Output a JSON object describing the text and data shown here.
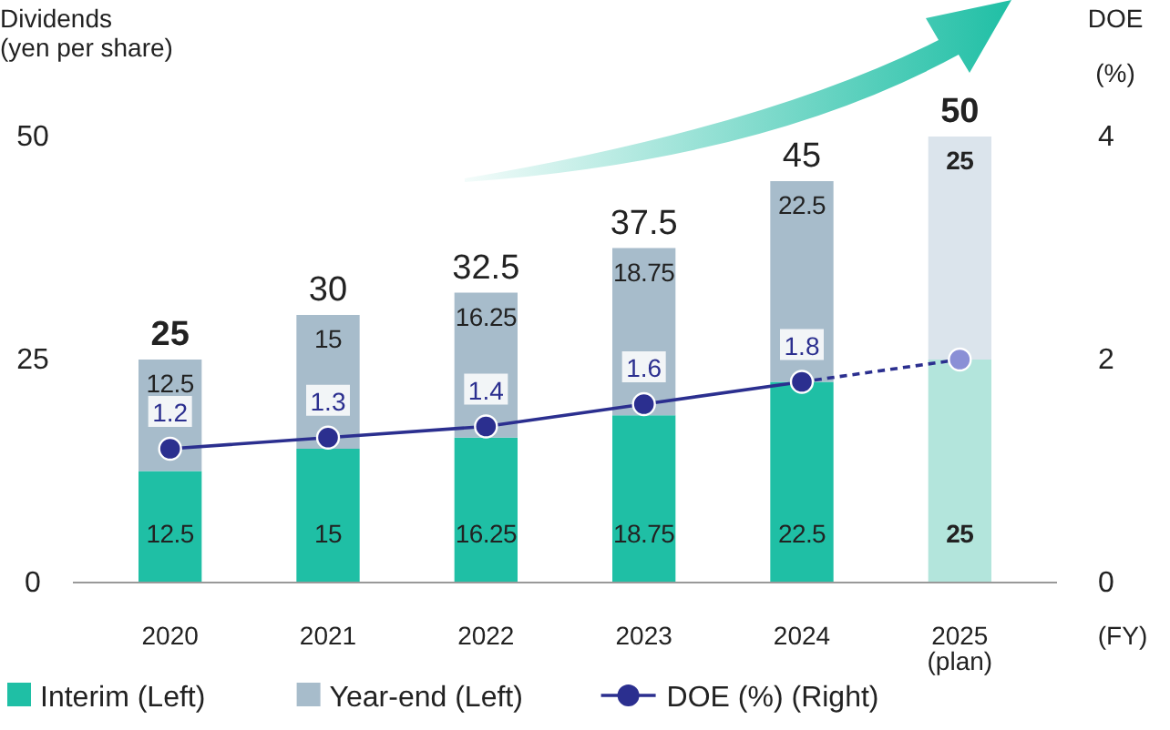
{
  "chart_data": {
    "type": "bar",
    "stacked": true,
    "categories": [
      "2020",
      "2021",
      "2022",
      "2023",
      "2024",
      "2025\n(plan)"
    ],
    "xlabel": "(FY)",
    "ylabel": "Dividends\n(yen per share)",
    "y2label": "DOE\n(%)",
    "ylim": [
      0,
      50
    ],
    "yticks": [
      0,
      25,
      50
    ],
    "y2lim": [
      0,
      4
    ],
    "y2ticks": [
      0,
      2,
      4
    ],
    "series": [
      {
        "name": "Interim (Left)",
        "color": "#1fbfa5",
        "colors": [
          "#1fbfa5",
          "#1fbfa5",
          "#1fbfa5",
          "#1fbfa5",
          "#1fbfa5",
          "#b3e5dc"
        ],
        "values": [
          12.5,
          15,
          16.25,
          18.75,
          22.5,
          25
        ]
      },
      {
        "name": "Year-end (Left)",
        "color": "#a7bccb",
        "colors": [
          "#a7bccb",
          "#a7bccb",
          "#a7bccb",
          "#a7bccb",
          "#a7bccb",
          "#dbe4ec"
        ],
        "values": [
          12.5,
          15,
          16.25,
          18.75,
          22.5,
          25
        ]
      },
      {
        "name": "DOE (%) (Right)",
        "type": "line",
        "axis": "y2",
        "color": "#2b2f8f",
        "line_style": "solid",
        "marker": "circle",
        "values": [
          1.2,
          1.3,
          1.4,
          1.6,
          1.8,
          null
        ],
        "value_labels": [
          "1.2",
          "1.3",
          "1.4",
          "1.6",
          "1.8",
          null
        ]
      },
      {
        "type": "line",
        "axis": "y2",
        "color": "#8a8fd6",
        "line_style": "dashed",
        "marker": "circle",
        "values": [
          null,
          null,
          null,
          null,
          null,
          2.0
        ],
        "value_labels": [
          null,
          null,
          null,
          null,
          null,
          null
        ]
      }
    ],
    "data_labels": true,
    "totals": [
      "25",
      "30",
      "32.5",
      "37.5",
      "45",
      "50"
    ],
    "legend": "bottom"
  }
}
